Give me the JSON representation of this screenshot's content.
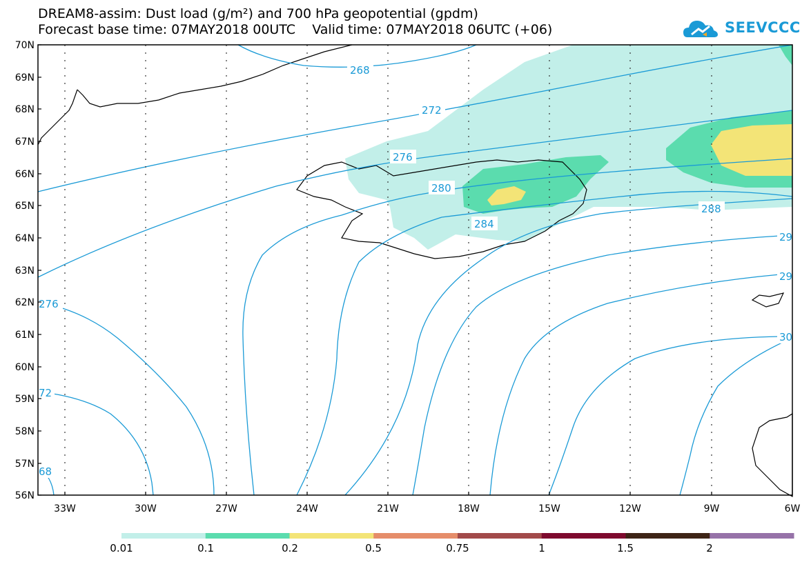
{
  "header": {
    "line1": "DREAM8-assim: Dust load (g/m²) and 700 hPa geopotential (gpdm)",
    "line2": "Forecast base time: 07MAY2018 00UTC    Valid time: 07MAY2018 06UTC (+06)"
  },
  "logo": {
    "text": "SEEVCCC",
    "color": "#1a9ad6",
    "icon": "cloud-logo-icon"
  },
  "map": {
    "lat_labels": [
      "70N",
      "69N",
      "68N",
      "67N",
      "66N",
      "65N",
      "64N",
      "63N",
      "62N",
      "61N",
      "60N",
      "59N",
      "58N",
      "57N",
      "56N"
    ],
    "lon_labels": [
      "33W",
      "30W",
      "27W",
      "24W",
      "21W",
      "18W",
      "15W",
      "12W",
      "9W",
      "6W"
    ],
    "contour_labels": [
      "268",
      "272",
      "276",
      "280",
      "284",
      "288",
      "29",
      "29",
      "30",
      "276",
      "72",
      "68"
    ],
    "contour_color": "#1a9ad6"
  },
  "colorbar": {
    "labels": [
      "0.01",
      "0.1",
      "0.2",
      "0.5",
      "0.75",
      "1",
      "1.5",
      "2"
    ],
    "colors": [
      "#c2efe9",
      "#5bdcae",
      "#f3e477",
      "#e58d6a",
      "#a24a4a",
      "#7e0a2e",
      "#3e2416",
      "#9672a8"
    ]
  }
}
